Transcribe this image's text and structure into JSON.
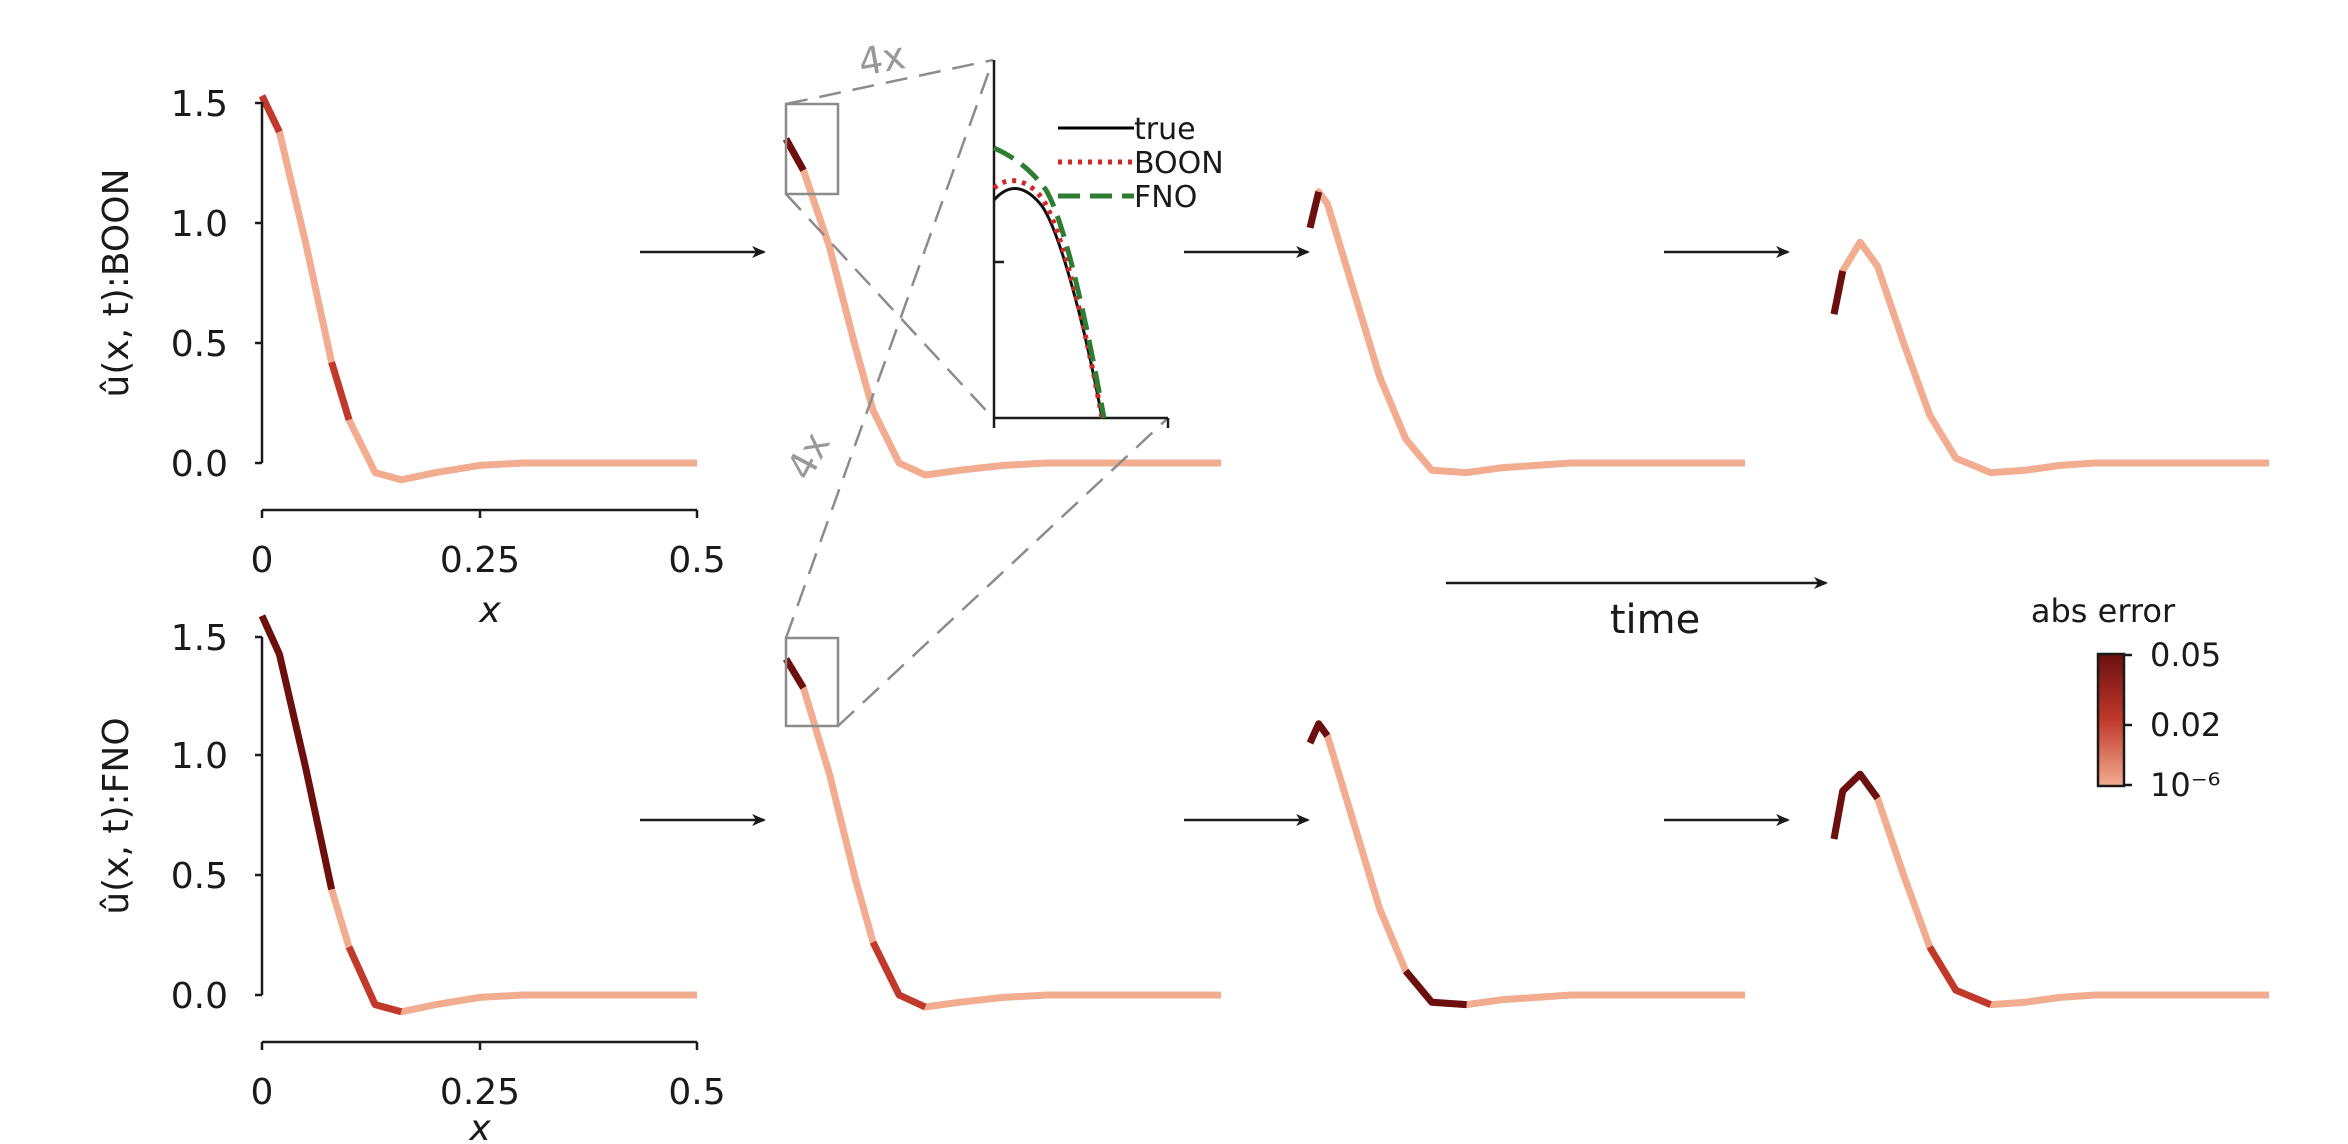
{
  "chart_data": [
    {
      "type": "line",
      "model": "BOON",
      "ylabel": "û(x, t):BOON",
      "xlabel": "x",
      "xlim": [
        0,
        0.5
      ],
      "ylim": [
        0,
        1.5
      ],
      "x_ticks": [
        "0",
        "0.25",
        "0.5"
      ],
      "y_ticks": [
        "0.0",
        "0.5",
        "1.0",
        "1.5"
      ],
      "colored_by": "abs error",
      "series": [
        {
          "x": [
            0,
            0.02,
            0.05,
            0.08,
            0.1,
            0.13,
            0.16,
            0.2,
            0.25,
            0.3,
            0.35,
            0.4,
            0.45,
            0.5
          ],
          "values": [
            1.53,
            1.38,
            0.92,
            0.42,
            0.18,
            -0.04,
            -0.07,
            -0.04,
            -0.01,
            0.0,
            0.0,
            0.0,
            0.0,
            0.0
          ]
        },
        {
          "x": [
            0,
            0.02,
            0.05,
            0.08,
            0.1,
            0.13,
            0.16,
            0.2,
            0.25,
            0.3,
            0.35,
            0.4,
            0.45,
            0.5
          ],
          "values": [
            1.35,
            1.22,
            0.9,
            0.48,
            0.22,
            0.0,
            -0.05,
            -0.03,
            -0.01,
            0.0,
            0.0,
            0.0,
            0.0,
            0.0
          ]
        },
        {
          "x": [
            0,
            0.01,
            0.02,
            0.05,
            0.08,
            0.11,
            0.14,
            0.18,
            0.22,
            0.26,
            0.3,
            0.35,
            0.4,
            0.45,
            0.5
          ],
          "values": [
            0.98,
            1.13,
            1.08,
            0.72,
            0.36,
            0.1,
            -0.03,
            -0.04,
            -0.02,
            -0.01,
            0.0,
            0.0,
            0.0,
            0.0,
            0.0
          ]
        },
        {
          "x": [
            0,
            0.01,
            0.03,
            0.05,
            0.08,
            0.11,
            0.14,
            0.18,
            0.22,
            0.26,
            0.3,
            0.35,
            0.4,
            0.45,
            0.5
          ],
          "values": [
            0.62,
            0.8,
            0.92,
            0.82,
            0.5,
            0.2,
            0.02,
            -0.04,
            -0.03,
            -0.01,
            0.0,
            0.0,
            0.0,
            0.0,
            0.0
          ]
        }
      ]
    },
    {
      "type": "line",
      "model": "FNO",
      "ylabel": "û(x, t):FNO",
      "xlabel": "x",
      "xlim": [
        0,
        0.5
      ],
      "ylim": [
        0,
        1.5
      ],
      "x_ticks": [
        "0",
        "0.25",
        "0.5"
      ],
      "y_ticks": [
        "0.0",
        "0.5",
        "1.0",
        "1.5"
      ],
      "colored_by": "abs error",
      "series": [
        {
          "x": [
            0,
            0.02,
            0.05,
            0.08,
            0.1,
            0.13,
            0.16,
            0.2,
            0.25,
            0.3,
            0.35,
            0.4,
            0.45,
            0.5
          ],
          "values": [
            1.58,
            1.42,
            0.95,
            0.44,
            0.2,
            -0.04,
            -0.07,
            -0.04,
            -0.01,
            0.0,
            0.0,
            0.0,
            0.0,
            0.0
          ]
        },
        {
          "x": [
            0,
            0.02,
            0.05,
            0.08,
            0.1,
            0.13,
            0.16,
            0.2,
            0.25,
            0.3,
            0.35,
            0.4,
            0.45,
            0.5
          ],
          "values": [
            1.4,
            1.28,
            0.92,
            0.48,
            0.22,
            0.0,
            -0.05,
            -0.03,
            -0.01,
            0.0,
            0.0,
            0.0,
            0.0,
            0.0
          ]
        },
        {
          "x": [
            0,
            0.01,
            0.02,
            0.05,
            0.08,
            0.11,
            0.14,
            0.18,
            0.22,
            0.26,
            0.3,
            0.35,
            0.4,
            0.45,
            0.5
          ],
          "values": [
            1.05,
            1.13,
            1.08,
            0.72,
            0.36,
            0.1,
            -0.03,
            -0.04,
            -0.02,
            -0.01,
            0.0,
            0.0,
            0.0,
            0.0,
            0.0
          ]
        },
        {
          "x": [
            0,
            0.01,
            0.03,
            0.05,
            0.08,
            0.11,
            0.14,
            0.18,
            0.22,
            0.26,
            0.3,
            0.35,
            0.4,
            0.45,
            0.5
          ],
          "values": [
            0.65,
            0.85,
            0.92,
            0.82,
            0.5,
            0.2,
            0.02,
            -0.04,
            -0.03,
            -0.01,
            0.0,
            0.0,
            0.0,
            0.0,
            0.0
          ]
        }
      ]
    }
  ],
  "inset": {
    "zoom_label": "4x",
    "legend": [
      {
        "label": "true",
        "color": "#000000",
        "style": "solid"
      },
      {
        "label": "BOON",
        "color": "#d62728",
        "style": "dotted"
      },
      {
        "label": "FNO",
        "color": "#2e7d32",
        "style": "dashed"
      }
    ]
  },
  "time_label": "time",
  "colorbar": {
    "title": "abs error",
    "ticks": [
      "0.05",
      "0.02",
      "10⁻⁶"
    ],
    "colors": [
      "#6b0f0f",
      "#c0392b",
      "#f2ad91"
    ]
  }
}
